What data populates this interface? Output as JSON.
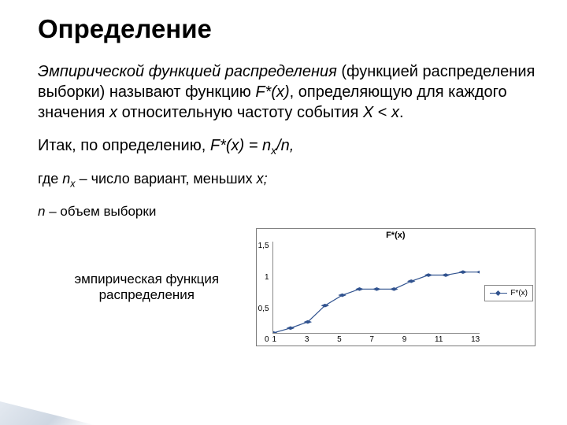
{
  "title": "Определение",
  "para1": {
    "lead_italic": "Эмпирической функцией распределения",
    "after_lead": " (функцией распределения выборки) называют функцию ",
    "fn1a": "F*",
    "fn1b": "(x)",
    "mid": ", определяющую для каждого значения ",
    "xvar": "x",
    "mid2": " относительную частоту события ",
    "Xvar": "X",
    "lt": " < ",
    "xvar2": "x",
    "dot": "."
  },
  "para2": {
    "pre": "Итак, по определению, ",
    "fn2a": "F*",
    "fn2b": "(x)",
    "eq": " = ",
    "nx": "n",
    "nxsub": "x",
    "slash": "/n,"
  },
  "para3": {
    "pre": "где ",
    "n": "n",
    "nsub": "x",
    "post": " – число вариант, меньших ",
    "x3": "x;"
  },
  "para4": {
    "n": "n",
    "post": " – объем выборки"
  },
  "caption": "эмпирическая функция распределения",
  "chart": {
    "title": "F*(x)",
    "legend_label": "F*(x)",
    "ylim": [
      0,
      1.5
    ],
    "yticks": [
      "1,5",
      "1",
      "0,5",
      "0"
    ],
    "xticks": [
      "1",
      "3",
      "5",
      "7",
      "9",
      "11",
      "13"
    ],
    "points": [
      {
        "x": 1,
        "y": 0.0
      },
      {
        "x": 2,
        "y": 0.08
      },
      {
        "x": 3,
        "y": 0.18
      },
      {
        "x": 4,
        "y": 0.45
      },
      {
        "x": 5,
        "y": 0.62
      },
      {
        "x": 6,
        "y": 0.72
      },
      {
        "x": 7,
        "y": 0.72
      },
      {
        "x": 8,
        "y": 0.72
      },
      {
        "x": 9,
        "y": 0.85
      },
      {
        "x": 10,
        "y": 0.95
      },
      {
        "x": 11,
        "y": 0.95
      },
      {
        "x": 12,
        "y": 1.0
      },
      {
        "x": 13,
        "y": 1.0
      }
    ],
    "line_color": "#31538f",
    "marker_fill": "#31538f",
    "marker_size": 5,
    "plot_bg": "#ffffff",
    "axis_color": "#888888",
    "xlim": [
      1,
      13
    ]
  }
}
